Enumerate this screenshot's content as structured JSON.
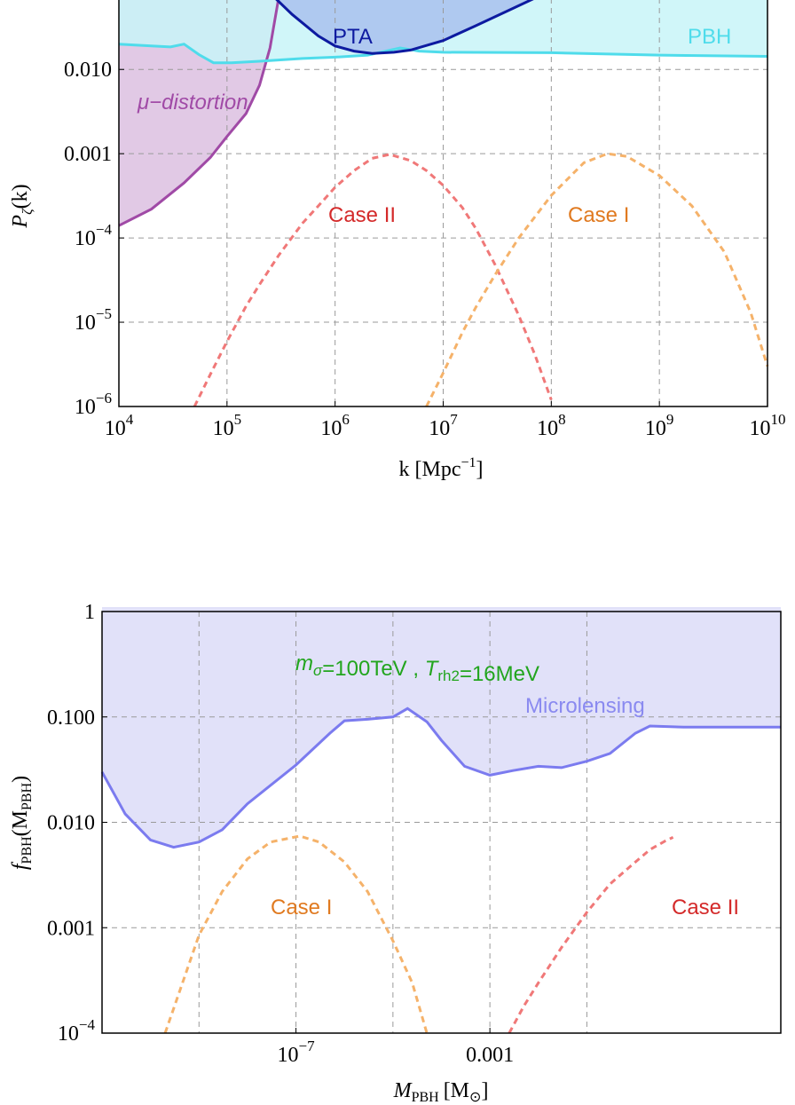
{
  "chart_data": [
    {
      "type": "area",
      "x_scale": "log",
      "y_scale": "log",
      "xlim": [
        10000,
        10000000000
      ],
      "ylim": [
        1e-06,
        0.07
      ],
      "grid": true,
      "xlabel": "k [Mpc",
      "xlabel_sup": "−1",
      "xlabel_end": "]",
      "ylabel": "P",
      "ylabel_sub": "ζ",
      "ylabel_end": "(k)",
      "x_ticks": [
        {
          "value": 10000,
          "base": "10",
          "exp": "4"
        },
        {
          "value": 100000,
          "base": "10",
          "exp": "5"
        },
        {
          "value": 1000000,
          "base": "10",
          "exp": "6"
        },
        {
          "value": 10000000,
          "base": "10",
          "exp": "7"
        },
        {
          "value": 100000000,
          "base": "10",
          "exp": "8"
        },
        {
          "value": 1000000000,
          "base": "10",
          "exp": "9"
        },
        {
          "value": 10000000000,
          "base": "10",
          "exp": "10"
        }
      ],
      "y_ticks": [
        {
          "value": 0.01,
          "label": "0.010",
          "exp": ""
        },
        {
          "value": 0.001,
          "label": "0.001",
          "exp": ""
        },
        {
          "value": 0.0001,
          "label": "10",
          "exp": "−4"
        },
        {
          "value": 1e-05,
          "label": "10",
          "exp": "−5"
        },
        {
          "value": 1e-06,
          "label": "10",
          "exp": "−6"
        }
      ],
      "regions": [
        {
          "name": "μ−distortion",
          "line": "#a04aa6",
          "fill": "#dcc0e0",
          "points": [
            [
              10000,
              0.00014
            ],
            [
              20000,
              0.00022
            ],
            [
              40000,
              0.00045
            ],
            [
              70000,
              0.0009
            ],
            [
              100000,
              0.0016
            ],
            [
              150000,
              0.003
            ],
            [
              200000,
              0.0065
            ],
            [
              250000,
              0.018
            ],
            [
              300000,
              0.07
            ]
          ]
        },
        {
          "name": "PBH",
          "line": "#4fdceb",
          "fill": "#c8f5f8",
          "points": [
            [
              10000,
              0.02
            ],
            [
              20000,
              0.019
            ],
            [
              30000,
              0.0185
            ],
            [
              40000,
              0.02
            ],
            [
              55000,
              0.015
            ],
            [
              75000,
              0.012
            ],
            [
              110000,
              0.012
            ],
            [
              200000,
              0.0125
            ],
            [
              500000,
              0.0135
            ],
            [
              1000000,
              0.014
            ],
            [
              2000000,
              0.0148
            ],
            [
              4000000,
              0.018
            ],
            [
              6000000,
              0.0165
            ],
            [
              10000000,
              0.016
            ],
            [
              100000000,
              0.0158
            ],
            [
              1000000000,
              0.0148
            ],
            [
              10000000000,
              0.0143
            ]
          ]
        },
        {
          "name": "PTA",
          "line": "#0d1aa0",
          "fill": "#a9c1ef",
          "points": [
            [
              280000,
              0.07
            ],
            [
              400000,
              0.045
            ],
            [
              700000,
              0.025
            ],
            [
              1000000,
              0.019
            ],
            [
              1500000,
              0.0165
            ],
            [
              2200000,
              0.0155
            ],
            [
              3500000,
              0.016
            ],
            [
              5000000,
              0.017
            ],
            [
              10000000,
              0.022
            ],
            [
              20000000,
              0.033
            ],
            [
              40000000,
              0.05
            ],
            [
              70000000,
              0.07
            ]
          ]
        }
      ],
      "series": [
        {
          "name": "Case II",
          "color": "#f07878",
          "label_color": "#d42a2a",
          "x": [
            50000,
            70000,
            100000,
            150000,
            200000,
            300000,
            500000,
            700000,
            1000000,
            1500000,
            2200000,
            3200000,
            5000000,
            7000000,
            10000000,
            15000000,
            20000000,
            30000000,
            50000000,
            70000000,
            100000000
          ],
          "y": [
            1e-06,
            2.4e-06,
            5.9e-06,
            1.55e-05,
            2.8e-05,
            6.2e-05,
            0.00015,
            0.00024,
            0.0004,
            0.00063,
            0.00088,
            0.00098,
            0.00083,
            0.00063,
            0.00042,
            0.00023,
            0.00013,
            4.9e-05,
            1.2e-05,
            4.2e-06,
            1.2e-06
          ]
        },
        {
          "name": "Case I",
          "color": "#f5b26a",
          "label_color": "#e07a20",
          "x": [
            7000000,
            10000000,
            15000000,
            20000000,
            30000000,
            50000000,
            100000000,
            200000000,
            330000000,
            500000000,
            1000000000,
            2000000000,
            4000000000,
            7000000000,
            10000000000
          ],
          "y": [
            1e-06,
            2.5e-06,
            7.5e-06,
            1.5e-05,
            3.6e-05,
            0.0001,
            0.00032,
            0.00078,
            0.001,
            0.00093,
            0.00055,
            0.00024,
            6.8e-05,
            1.3e-05,
            3e-06
          ]
        }
      ]
    },
    {
      "type": "area",
      "x_scale": "log",
      "y_scale": "log",
      "xlim": [
        1e-11,
        1000
      ],
      "ylim": [
        0.0001,
        1
      ],
      "grid": true,
      "xlabel": "M",
      "xlabel_sub": "PBH",
      "xlabel_end": "[M",
      "xlabel_end_sub": "⊙",
      "xlabel_close": "]",
      "ylabel": "f",
      "ylabel_sub": "PBH",
      "ylabel_mid": "(M",
      "ylabel_mid_sub": "PBH",
      "ylabel_end": ")",
      "x_ticks": [
        {
          "value": 1e-07,
          "base": "10",
          "exp": "−7"
        },
        {
          "value": 0.001,
          "base": "0.001",
          "exp": ""
        }
      ],
      "x_gridlines": [
        1e-09,
        1e-07,
        1e-05,
        0.001,
        0.1
      ],
      "y_ticks": [
        {
          "value": 1,
          "label": "1",
          "exp": ""
        },
        {
          "value": 0.1,
          "label": "0.100",
          "exp": ""
        },
        {
          "value": 0.01,
          "label": "0.010",
          "exp": ""
        },
        {
          "value": 0.001,
          "label": "0.001",
          "exp": ""
        },
        {
          "value": 0.0001,
          "label": "10",
          "exp": "−4"
        }
      ],
      "annotation": {
        "parts": [
          {
            "t": "m",
            "style": "italic"
          },
          {
            "t": "σ",
            "style": "italic-sub"
          },
          {
            "t": "=100TeV , ",
            "style": "normal"
          },
          {
            "t": "T",
            "style": "italic"
          },
          {
            "t": "rh2",
            "style": "sub"
          },
          {
            "t": "=16MeV",
            "style": "normal"
          }
        ],
        "color": "#22a51e"
      },
      "regions": [
        {
          "name": "Microlensing",
          "line": "#7b7bef",
          "fill": "#dcdcf8",
          "label_color": "#8a8af0",
          "points": [
            [
              1e-11,
              0.03
            ],
            [
              3e-11,
              0.012
            ],
            [
              1e-10,
              0.0068
            ],
            [
              3e-10,
              0.0058
            ],
            [
              1e-09,
              0.0065
            ],
            [
              3e-09,
              0.0085
            ],
            [
              1e-08,
              0.015
            ],
            [
              1e-07,
              0.035
            ],
            [
              5e-07,
              0.07
            ],
            [
              1e-06,
              0.092
            ],
            [
              3e-06,
              0.095
            ],
            [
              1e-05,
              0.1
            ],
            [
              2e-05,
              0.12
            ],
            [
              5e-05,
              0.09
            ],
            [
              0.0001,
              0.06
            ],
            [
              0.0003,
              0.034
            ],
            [
              0.001,
              0.028
            ],
            [
              0.003,
              0.031
            ],
            [
              0.01,
              0.034
            ],
            [
              0.03,
              0.033
            ],
            [
              0.1,
              0.038
            ],
            [
              0.3,
              0.045
            ],
            [
              1,
              0.07
            ],
            [
              2,
              0.082
            ],
            [
              10,
              0.08
            ],
            [
              1000,
              0.08
            ]
          ]
        }
      ],
      "series": [
        {
          "name": "Case I",
          "color": "#f5b26a",
          "label_color": "#e07a20",
          "x": [
            2e-10,
            4e-10,
            1e-09,
            3e-09,
            1e-08,
            3e-08,
            1.2e-07,
            3e-07,
            1e-06,
            3e-06,
            1e-05,
            2.5e-05,
            5e-05
          ],
          "y": [
            0.0001,
            0.00025,
            0.00085,
            0.0022,
            0.0045,
            0.0065,
            0.0074,
            0.0065,
            0.0042,
            0.0022,
            0.00075,
            0.0003,
            0.0001
          ]
        },
        {
          "name": "Case II",
          "color": "#f07878",
          "label_color": "#d42a2a",
          "x": [
            0.0025,
            0.005,
            0.01,
            0.03,
            0.1,
            0.3,
            1,
            2,
            4,
            6
          ],
          "y": [
            0.0001,
            0.00018,
            0.0003,
            0.00065,
            0.0014,
            0.0026,
            0.0042,
            0.0055,
            0.0066,
            0.0072
          ]
        }
      ]
    }
  ]
}
